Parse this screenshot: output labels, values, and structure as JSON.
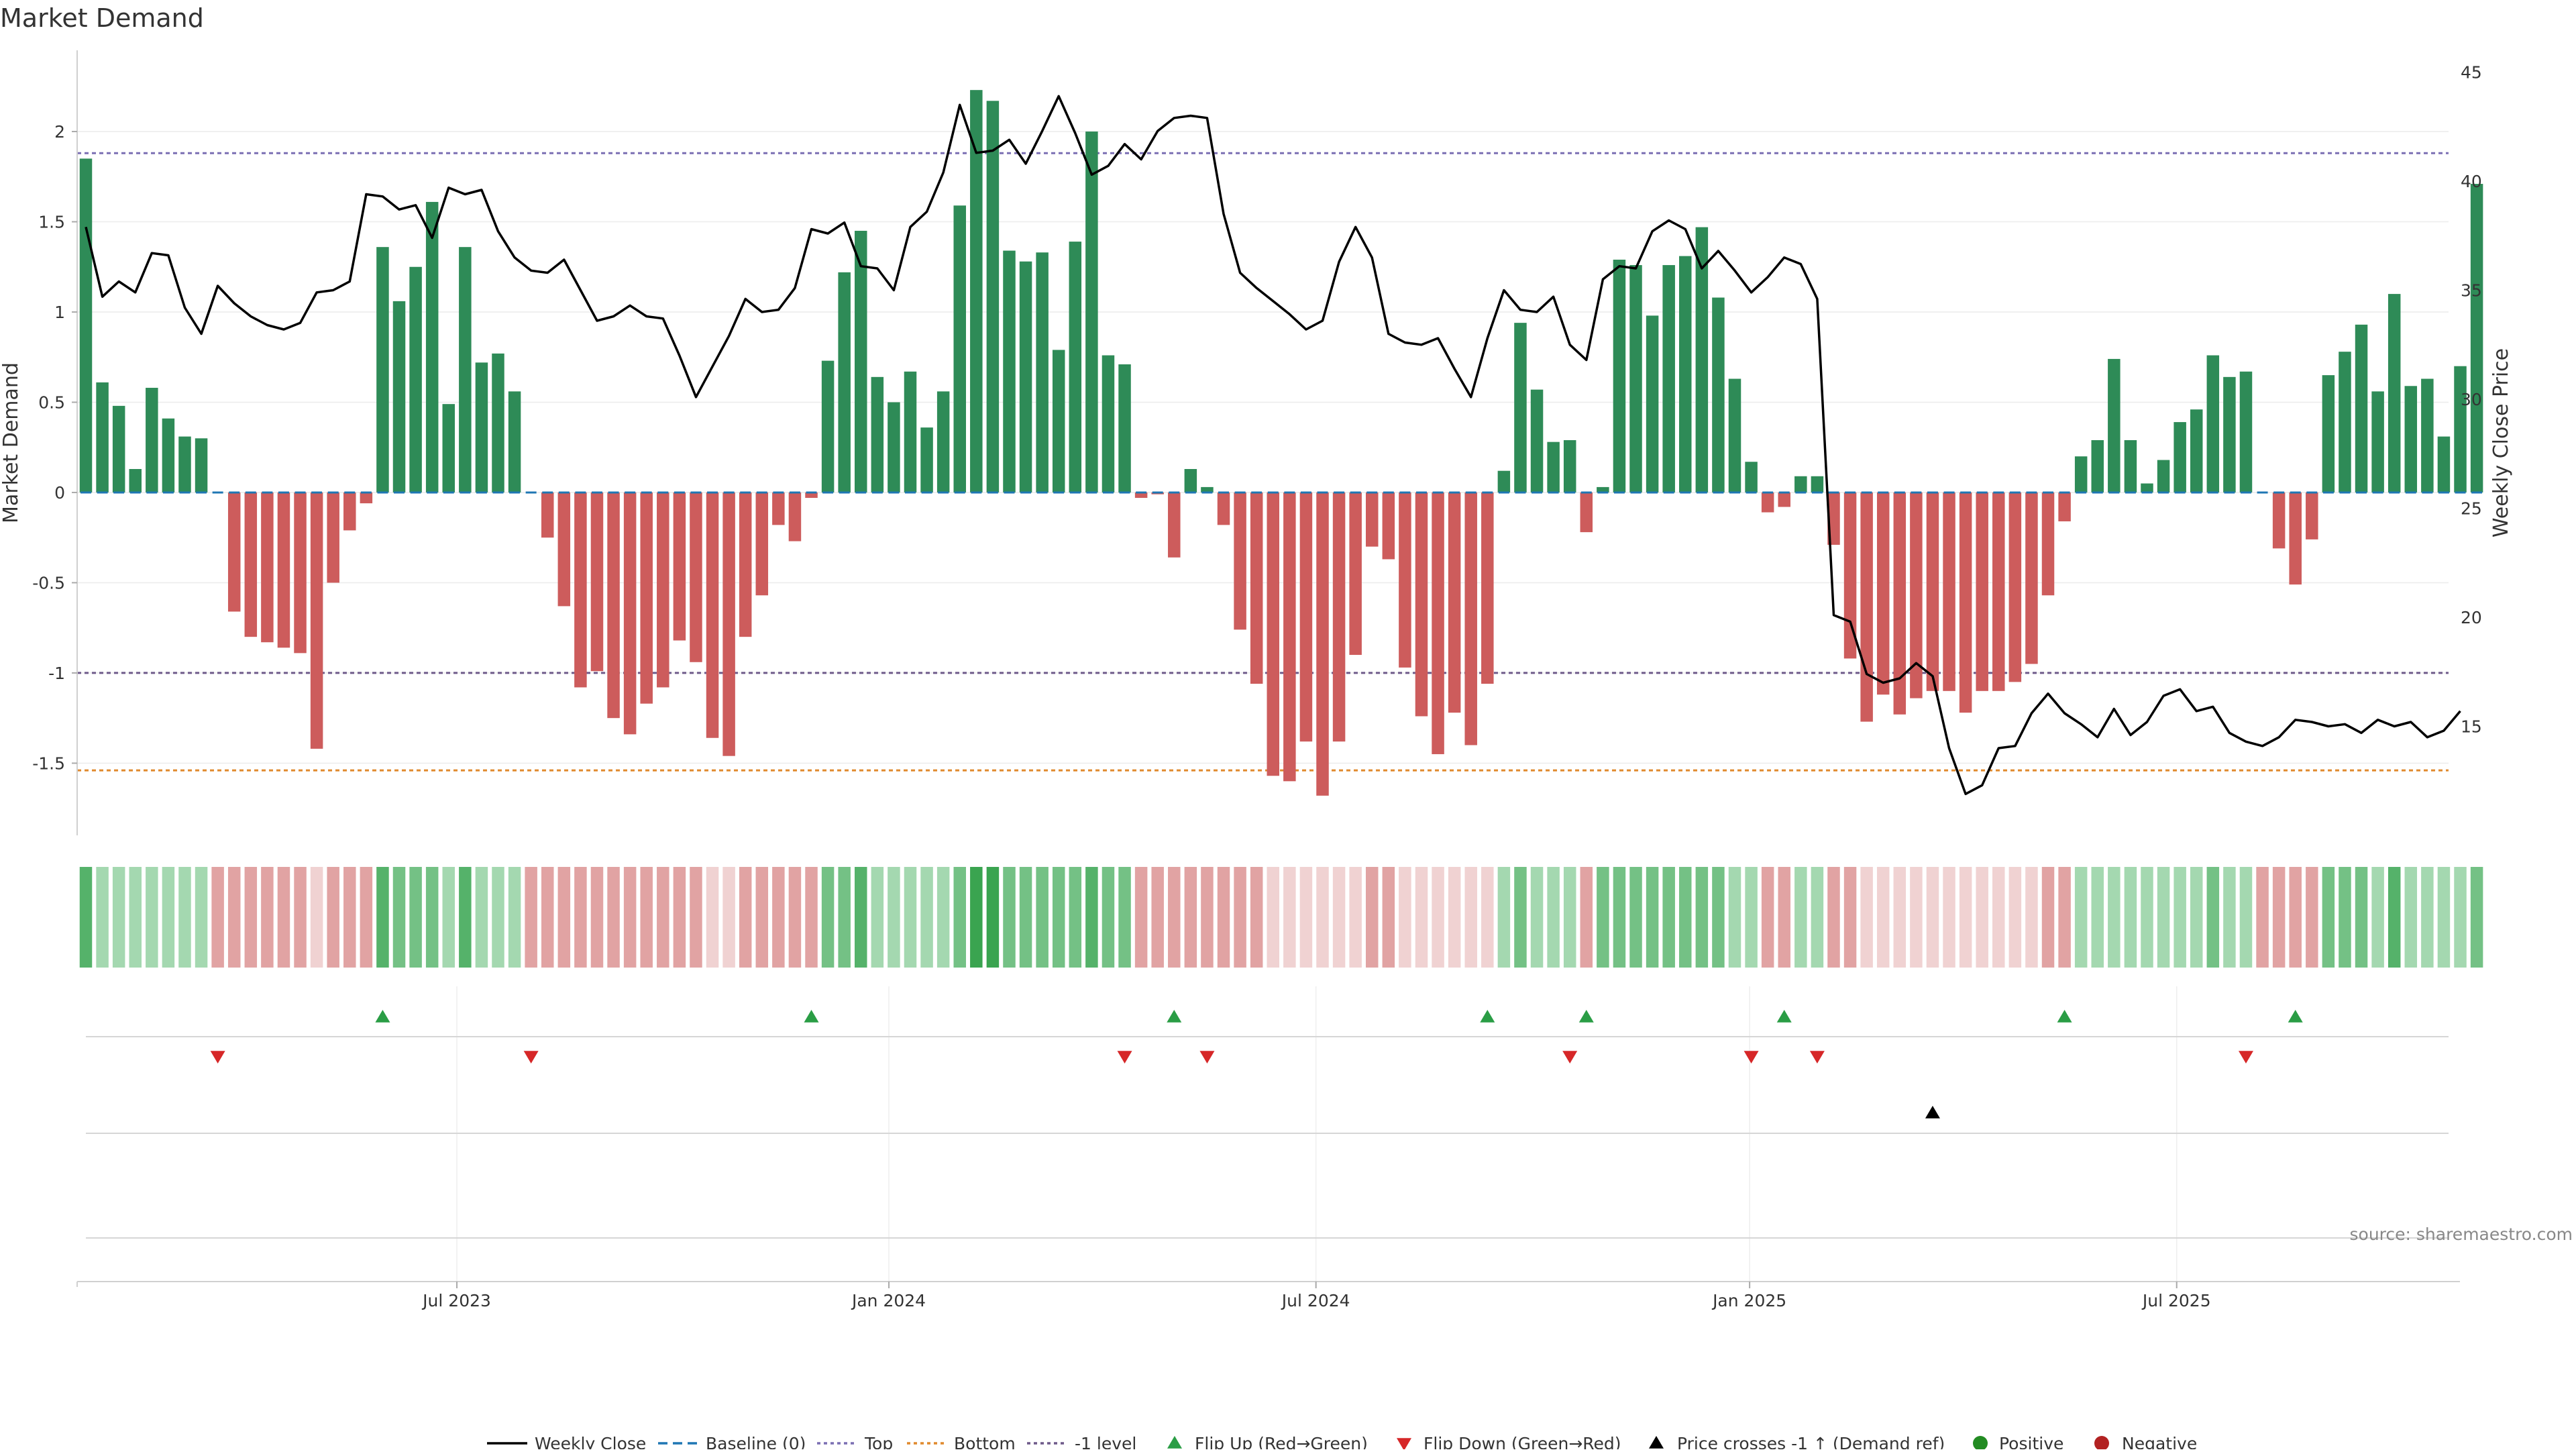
{
  "chart_data": {
    "type": "bar",
    "title": "Market Demand",
    "ylabel_left": "Market Demand",
    "ylabel_right": "Weekly Close Price",
    "source": "source: sharemaestro.com",
    "x_start": "2023-01-06",
    "x_interval_days": 7,
    "ylim_left": [
      -1.9,
      2.45
    ],
    "ylim_right": [
      10.0,
      46.0
    ],
    "left_ticks": [
      {
        "v": 2,
        "label": "2"
      },
      {
        "v": 1.5,
        "label": "1.5"
      },
      {
        "v": 1,
        "label": "1"
      },
      {
        "v": 0.5,
        "label": "0.5"
      },
      {
        "v": 0,
        "label": "0"
      },
      {
        "v": -0.5,
        "label": "-0.5"
      },
      {
        "v": -1,
        "label": "-1"
      },
      {
        "v": -1.5,
        "label": "-1.5"
      }
    ],
    "right_ticks": [
      {
        "v": 45,
        "label": "45"
      },
      {
        "v": 40,
        "label": "40"
      },
      {
        "v": 35,
        "label": "35"
      },
      {
        "v": 30,
        "label": "30"
      },
      {
        "v": 25,
        "label": "25"
      },
      {
        "v": 20,
        "label": "20"
      },
      {
        "v": 15,
        "label": "15"
      }
    ],
    "x_ticks": [
      {
        "i": 22.5,
        "label": "Jul 2023"
      },
      {
        "i": 48.7,
        "label": "Jan 2024"
      },
      {
        "i": 74.6,
        "label": "Jul 2024"
      },
      {
        "i": 100.9,
        "label": "Jan 2025"
      },
      {
        "i": 126.8,
        "label": "Jul 2025"
      }
    ],
    "reference_lines": [
      {
        "name": "Top",
        "value": 1.88,
        "color": "#7b6fb3"
      },
      {
        "name": "-1 level",
        "value": -1.0,
        "color": "#6e5a8a"
      },
      {
        "name": "Bottom",
        "value": -1.54,
        "color": "#e08a2e"
      }
    ],
    "demand": [
      1.85,
      0.61,
      0.48,
      0.13,
      0.58,
      0.41,
      0.31,
      0.3,
      0.0,
      -0.66,
      -0.8,
      -0.83,
      -0.86,
      -0.89,
      -1.42,
      -0.5,
      -0.21,
      -0.06,
      1.36,
      1.06,
      1.25,
      1.61,
      0.49,
      1.36,
      0.72,
      0.77,
      0.56,
      0.0,
      -0.25,
      -0.63,
      -1.08,
      -0.99,
      -1.25,
      -1.34,
      -1.17,
      -1.08,
      -0.82,
      -0.94,
      -1.36,
      -1.46,
      -0.8,
      -0.57,
      -0.18,
      -0.27,
      -0.03,
      0.73,
      1.22,
      1.45,
      0.64,
      0.5,
      0.67,
      0.36,
      0.56,
      1.59,
      2.23,
      2.17,
      1.34,
      1.28,
      1.33,
      0.79,
      1.39,
      2.0,
      0.76,
      0.71,
      -0.03,
      -0.01,
      -0.36,
      0.13,
      0.03,
      -0.18,
      -0.76,
      -1.06,
      -1.57,
      -1.6,
      -1.38,
      -1.68,
      -1.38,
      -0.9,
      -0.3,
      -0.37,
      -0.97,
      -1.24,
      -1.45,
      -1.22,
      -1.4,
      -1.06,
      0.12,
      0.94,
      0.57,
      0.28,
      0.29,
      -0.22,
      0.03,
      1.29,
      1.26,
      0.98,
      1.26,
      1.31,
      1.47,
      1.08,
      0.63,
      0.17,
      -0.11,
      -0.08,
      0.09,
      0.09,
      -0.29,
      -0.92,
      -1.27,
      -1.12,
      -1.23,
      -1.14,
      -1.1,
      -1.1,
      -1.22,
      -1.1,
      -1.1,
      -1.05,
      -0.95,
      -0.57,
      -0.16,
      0.2,
      0.29,
      0.74,
      0.29,
      0.05,
      0.18,
      0.39,
      0.46,
      0.76,
      0.64,
      0.67,
      0.0,
      -0.31,
      -0.51,
      -0.26,
      0.65,
      0.78,
      0.93,
      0.56,
      1.1,
      0.59,
      0.63,
      0.31,
      0.7,
      1.71
    ],
    "heat": [
      1,
      3,
      3,
      3,
      3,
      3,
      3,
      3,
      5,
      5,
      5,
      5,
      5,
      5,
      4,
      5,
      5,
      5,
      1,
      2,
      2,
      2,
      3,
      1,
      3,
      3,
      3,
      5,
      5,
      5,
      5,
      5,
      5,
      5,
      5,
      5,
      5,
      5,
      4,
      4,
      5,
      5,
      5,
      5,
      5,
      2,
      2,
      1,
      3,
      3,
      3,
      3,
      3,
      2,
      0,
      0,
      2,
      2,
      2,
      2,
      2,
      1,
      2,
      2,
      5,
      5,
      5,
      5,
      5,
      5,
      5,
      5,
      4,
      4,
      4,
      4,
      4,
      4,
      5,
      5,
      4,
      4,
      4,
      4,
      4,
      4,
      3,
      2,
      3,
      3,
      3,
      5,
      2,
      2,
      2,
      2,
      2,
      2,
      2,
      2,
      3,
      3,
      5,
      5,
      3,
      3,
      5,
      5,
      4,
      4,
      4,
      4,
      4,
      4,
      4,
      4,
      4,
      4,
      4,
      5,
      5,
      3,
      3,
      3,
      3,
      3,
      3,
      3,
      3,
      2,
      3,
      3,
      5,
      5,
      5,
      5,
      2,
      2,
      2,
      3,
      1,
      3,
      3,
      3,
      3,
      2
    ],
    "price": [
      37.9,
      34.7,
      35.4,
      34.9,
      36.7,
      36.6,
      34.2,
      33.0,
      35.2,
      34.4,
      33.8,
      33.4,
      33.2,
      33.5,
      34.9,
      35.0,
      35.4,
      39.4,
      39.3,
      38.7,
      38.9,
      37.4,
      39.7,
      39.4,
      39.6,
      37.7,
      36.5,
      35.9,
      35.8,
      36.4,
      35.0,
      33.6,
      33.8,
      34.3,
      33.8,
      33.7,
      32.0,
      30.1,
      31.5,
      32.9,
      34.6,
      34.0,
      34.1,
      35.1,
      37.8,
      37.6,
      38.1,
      36.1,
      36.0,
      35.0,
      37.9,
      38.6,
      40.4,
      43.5,
      41.3,
      41.4,
      41.9,
      40.8,
      42.3,
      43.9,
      42.2,
      40.3,
      40.7,
      41.7,
      41.0,
      42.3,
      42.9,
      43.0,
      42.9,
      38.5,
      35.8,
      35.1,
      34.5,
      33.9,
      33.2,
      33.6,
      36.3,
      37.9,
      36.5,
      33.0,
      32.6,
      32.5,
      32.8,
      31.4,
      30.1,
      32.8,
      35.0,
      34.1,
      34.0,
      34.7,
      32.5,
      31.8,
      35.5,
      36.1,
      36.0,
      37.7,
      38.2,
      37.8,
      36.0,
      36.8,
      35.9,
      34.9,
      35.6,
      36.5,
      36.2,
      34.6,
      20.1,
      19.8,
      17.4,
      17.0,
      17.2,
      17.9,
      17.3,
      14.0,
      11.9,
      12.3,
      14.0,
      14.1,
      15.6,
      16.5,
      15.6,
      15.1,
      14.5,
      15.8,
      14.6,
      15.2,
      16.4,
      16.7,
      15.7,
      15.9,
      14.7,
      14.3,
      14.1,
      14.5,
      15.3,
      15.2,
      15.0,
      15.1,
      14.7,
      15.3,
      15.0,
      15.2,
      14.5,
      14.8,
      15.7
    ],
    "flip_up": [
      18,
      44,
      66,
      85,
      91,
      103,
      120,
      134
    ],
    "flip_down": [
      8,
      27,
      63,
      68,
      90,
      101,
      105,
      131
    ],
    "price_cross": [
      112
    ],
    "series_colors": {
      "positive": "#2e8b57",
      "negative": "#cd5c5c",
      "price": "#000000",
      "baseline": "#1f77b4",
      "flip_up": "#2a9d45",
      "flip_down": "#d62728",
      "price_cross": "#000000",
      "legend_positive": "#228b22",
      "legend_negative": "#b22222"
    }
  },
  "legend": [
    {
      "key": "weekly_close",
      "label": "Weekly Close"
    },
    {
      "key": "baseline",
      "label": "Baseline (0)"
    },
    {
      "key": "top",
      "label": "Top"
    },
    {
      "key": "bottom",
      "label": "Bottom"
    },
    {
      "key": "minus1",
      "label": "-1 level"
    },
    {
      "key": "flip_up",
      "label": "Flip Up (Red→Green)"
    },
    {
      "key": "flip_down",
      "label": "Flip Down (Green→Red)"
    },
    {
      "key": "price_cross",
      "label": "Price crosses -1 ↑ (Demand ref)"
    },
    {
      "key": "positive",
      "label": "Positive"
    },
    {
      "key": "negative",
      "label": "Negative"
    }
  ]
}
